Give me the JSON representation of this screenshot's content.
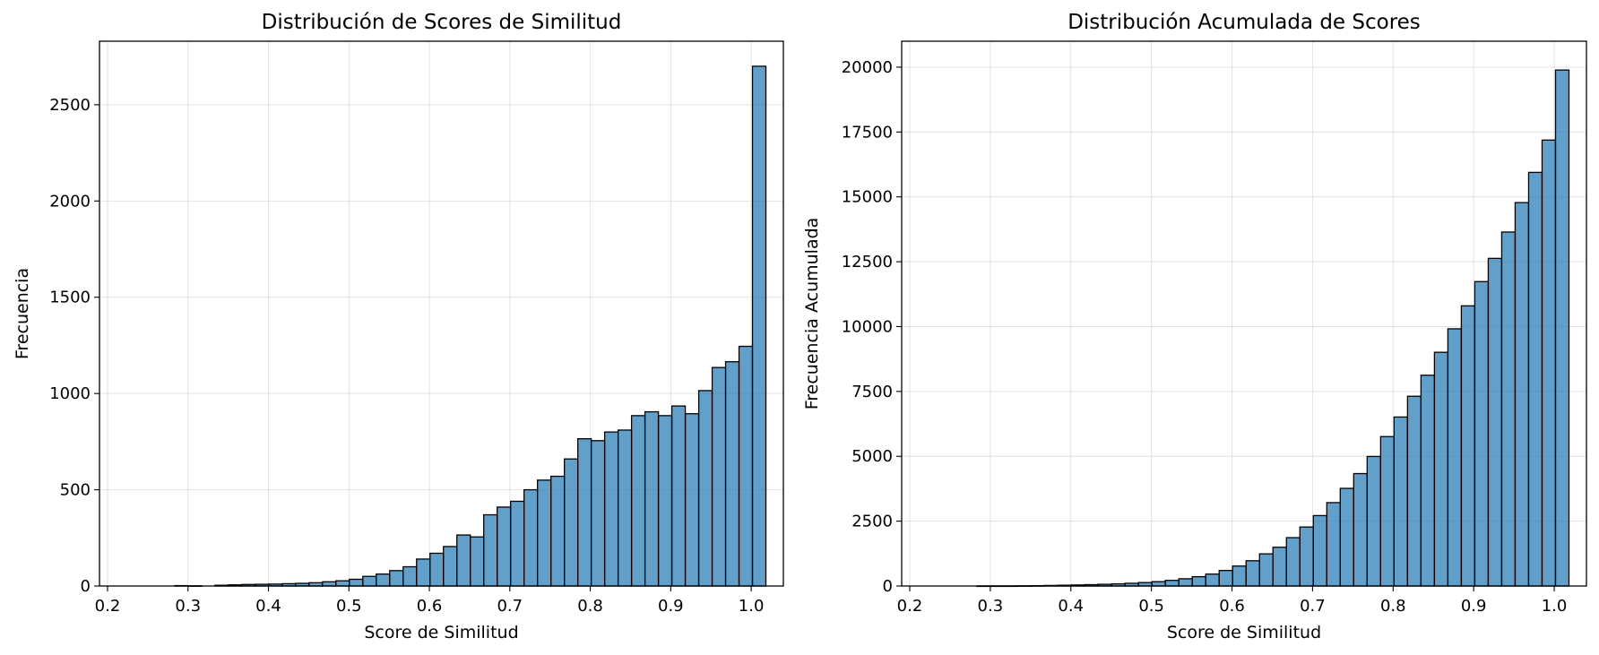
{
  "chart_data": [
    {
      "type": "bar",
      "title": "Distribución de Scores de Similitud",
      "xlabel": "Score de Similitud",
      "ylabel": "Frecuencia",
      "xlim": [
        0.19,
        1.04
      ],
      "ylim": [
        0,
        2830
      ],
      "xticks": [
        0.2,
        0.3,
        0.4,
        0.5,
        0.6,
        0.7,
        0.8,
        0.9,
        1.0
      ],
      "xtick_labels": [
        "0.2",
        "0.3",
        "0.4",
        "0.5",
        "0.6",
        "0.7",
        "0.8",
        "0.9",
        "1.0"
      ],
      "yticks": [
        0,
        500,
        1000,
        1500,
        2000,
        2500
      ],
      "ytick_labels": [
        "0",
        "500",
        "1000",
        "1500",
        "2000",
        "2500"
      ],
      "grid": true,
      "bin_start": 0.2,
      "bin_width": 0.0167,
      "values": [
        0,
        0,
        0,
        0,
        0,
        2,
        1,
        0,
        4,
        6,
        8,
        9,
        10,
        12,
        14,
        17,
        22,
        27,
        35,
        50,
        62,
        80,
        100,
        140,
        170,
        205,
        265,
        255,
        370,
        410,
        440,
        500,
        550,
        570,
        660,
        765,
        755,
        800,
        810,
        885,
        905,
        885,
        935,
        895,
        1015,
        1135,
        1165,
        1245,
        2700
      ]
    },
    {
      "type": "bar",
      "title": "Distribución Acumulada de Scores",
      "xlabel": "Score de Similitud",
      "ylabel": "Frecuencia Acumulada",
      "xlim": [
        0.19,
        1.04
      ],
      "ylim": [
        0,
        21000
      ],
      "xticks": [
        0.2,
        0.3,
        0.4,
        0.5,
        0.6,
        0.7,
        0.8,
        0.9,
        1.0
      ],
      "xtick_labels": [
        "0.2",
        "0.3",
        "0.4",
        "0.5",
        "0.6",
        "0.7",
        "0.8",
        "0.9",
        "1.0"
      ],
      "yticks": [
        0,
        2500,
        5000,
        7500,
        10000,
        12500,
        15000,
        17500,
        20000
      ],
      "ytick_labels": [
        "0",
        "2500",
        "5000",
        "7500",
        "10000",
        "12500",
        "15000",
        "17500",
        "20000"
      ],
      "grid": true,
      "bin_start": 0.2,
      "bin_width": 0.0167,
      "values": [
        0,
        0,
        0,
        0,
        0,
        2,
        3,
        3,
        7,
        13,
        21,
        30,
        40,
        52,
        66,
        83,
        105,
        132,
        167,
        217,
        279,
        359,
        459,
        599,
        769,
        974,
        1239,
        1494,
        1864,
        2274,
        2714,
        3214,
        3764,
        4334,
        4994,
        5759,
        6514,
        7314,
        8124,
        9009,
        9914,
        10799,
        11734,
        12629,
        13644,
        14779,
        15944,
        17189,
        19889
      ]
    }
  ]
}
